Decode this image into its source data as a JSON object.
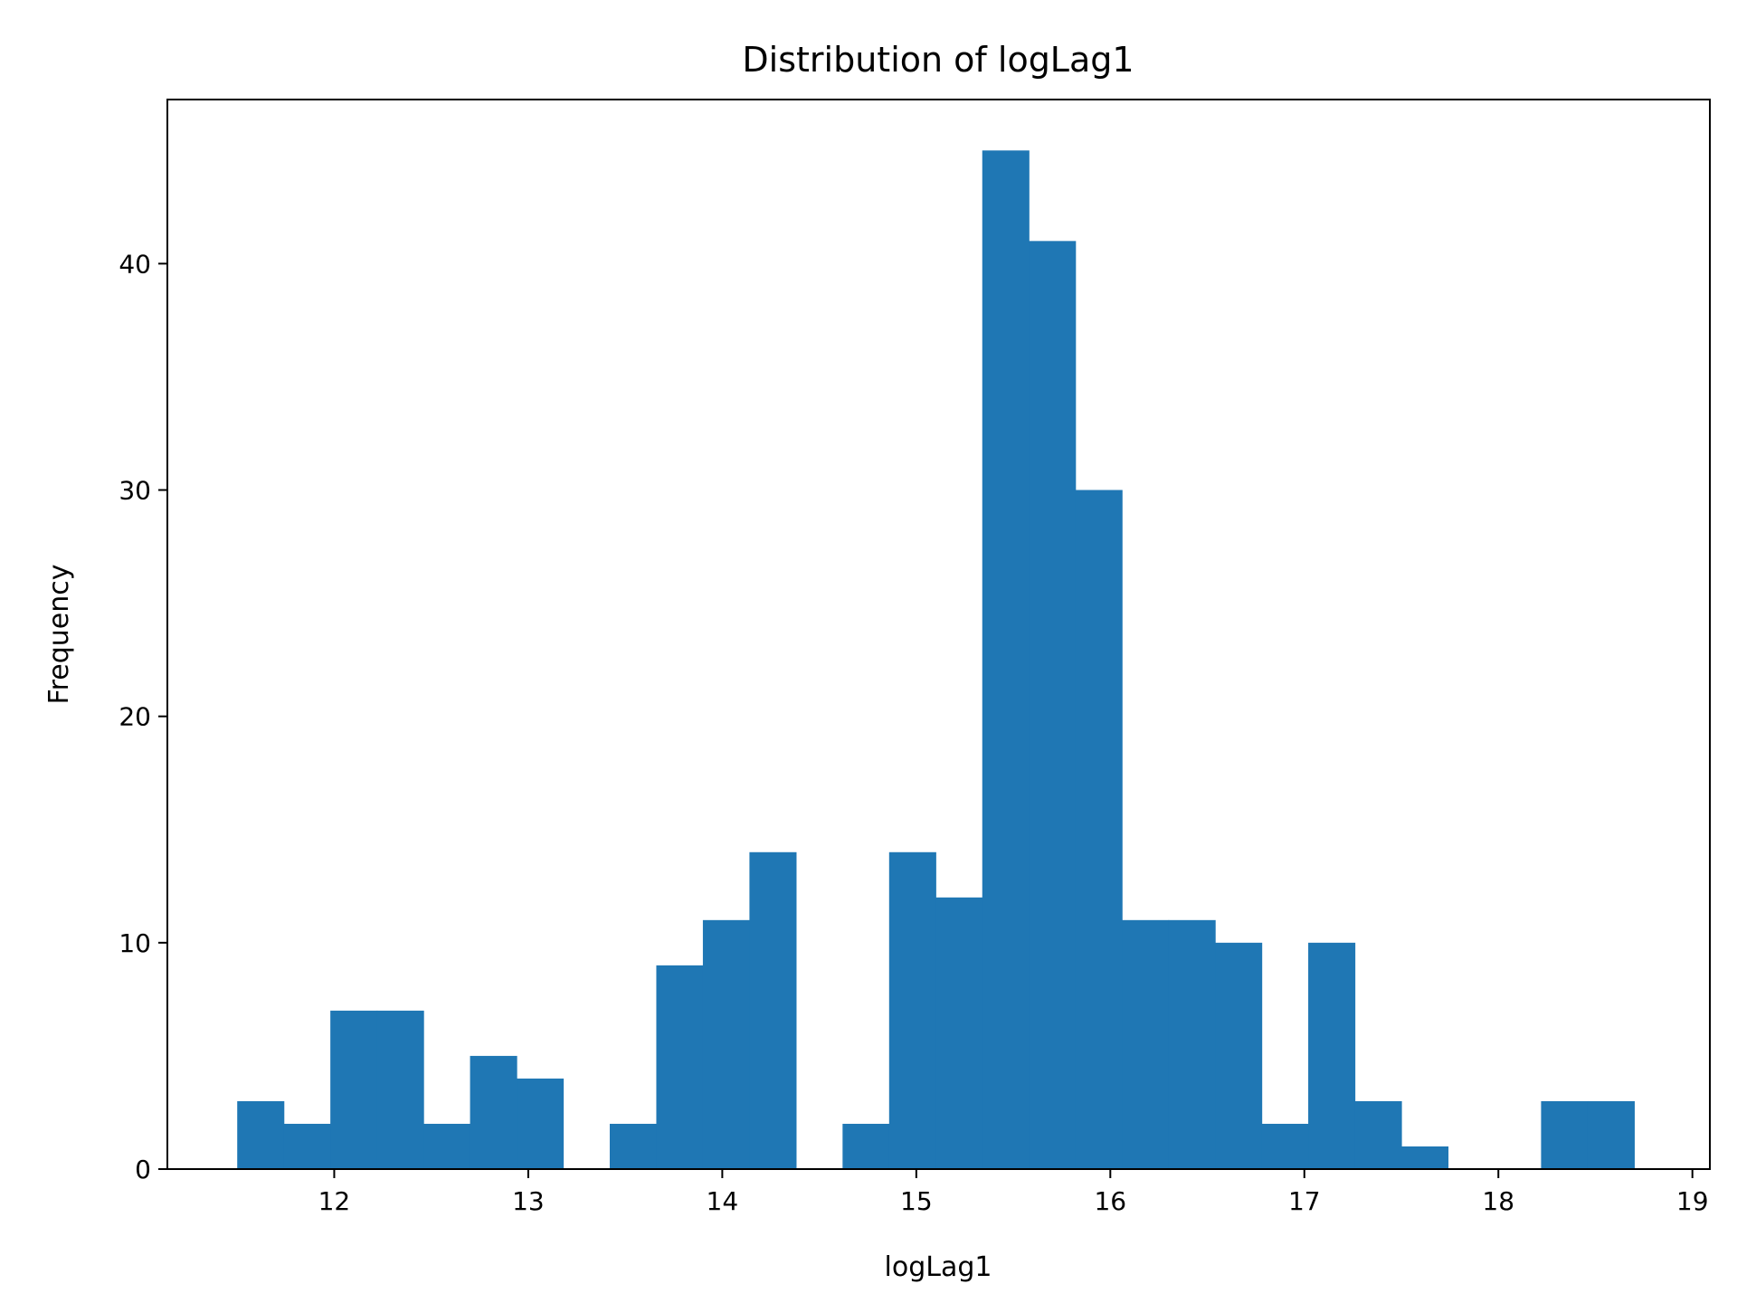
{
  "chart_data": {
    "type": "bar",
    "title": "Distribution of logLag1",
    "xlabel": "logLag1",
    "ylabel": "Frequency",
    "xlim": [
      11.14,
      19.09
    ],
    "ylim": [
      0,
      47.25
    ],
    "x_ticks": [
      12,
      13,
      14,
      15,
      16,
      17,
      18,
      19
    ],
    "y_ticks": [
      0,
      10,
      20,
      30,
      40
    ],
    "bar_color": "#1f77b4",
    "bin_edges": [
      11.5,
      11.74,
      11.98,
      12.22,
      12.46,
      12.7,
      12.94,
      13.18,
      13.42,
      13.66,
      13.9,
      14.14,
      14.38,
      14.62,
      14.86,
      15.1,
      15.34,
      15.58,
      15.82,
      16.06,
      16.3,
      16.54,
      16.78,
      17.02,
      17.26,
      17.5,
      17.74,
      17.98,
      18.22,
      18.46,
      18.7
    ],
    "values": [
      3,
      2,
      7,
      7,
      2,
      5,
      4,
      0,
      2,
      9,
      11,
      14,
      0,
      2,
      14,
      12,
      45,
      41,
      30,
      11,
      11,
      10,
      2,
      10,
      3,
      1,
      0,
      0,
      3,
      3
    ],
    "grid": false,
    "legend": "none"
  }
}
